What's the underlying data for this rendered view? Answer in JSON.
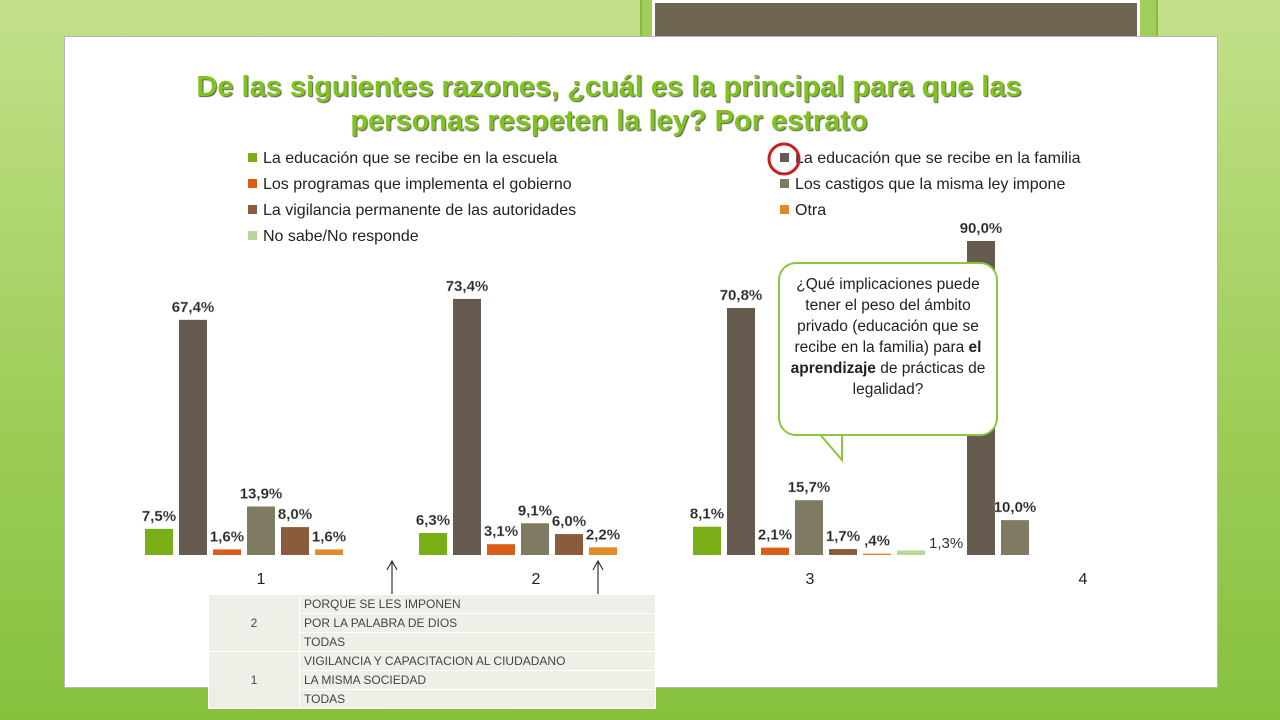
{
  "title_line1": "De las siguientes razones, ¿cuál es la principal para que las",
  "title_line2": "personas respeten la ley? Por estrato",
  "colors": {
    "escuela": "#7aae17",
    "familia": "#675a4f",
    "gobierno": "#d85e1a",
    "castigos": "#7f7a62",
    "vigilancia": "#8a5b3c",
    "otra": "#e08a2c",
    "nsnr": "#b6d69a",
    "title": "#7fc31c",
    "circle": "#c8201e"
  },
  "chart_data": {
    "type": "bar",
    "categories": [
      "1",
      "2",
      "3",
      "4"
    ],
    "series": [
      {
        "name": "La educación que se recibe en la escuela",
        "color_key": "escuela",
        "values": [
          7.5,
          6.3,
          8.1,
          null
        ],
        "labels": [
          "7,5%",
          "6,3%",
          "8,1%",
          ""
        ]
      },
      {
        "name": "La educación que se recibe en la familia",
        "color_key": "familia",
        "values": [
          67.4,
          73.4,
          70.8,
          90.0
        ],
        "labels": [
          "67,4%",
          "73,4%",
          "70,8%",
          "90,0%"
        ]
      },
      {
        "name": "Los programas que implementa el gobierno",
        "color_key": "gobierno",
        "values": [
          1.6,
          3.1,
          2.1,
          null
        ],
        "labels": [
          "1,6%",
          "3,1%",
          "2,1%",
          ""
        ]
      },
      {
        "name": "Los castigos que la misma ley impone",
        "color_key": "castigos",
        "values": [
          13.9,
          9.1,
          15.7,
          10.0
        ],
        "labels": [
          "13,9%",
          "9,1%",
          "15,7%",
          "10,0%"
        ]
      },
      {
        "name": "La vigilancia permanente de las autoridades",
        "color_key": "vigilancia",
        "values": [
          8.0,
          6.0,
          1.7,
          null
        ],
        "labels": [
          "8,0%",
          "6,0%",
          "1,7%",
          ""
        ]
      },
      {
        "name": "Otra",
        "color_key": "otra",
        "values": [
          1.6,
          2.2,
          0.4,
          null
        ],
        "labels": [
          "1,6%",
          "2,2%",
          ",4%",
          ""
        ]
      },
      {
        "name": "No sabe/No responde",
        "color_key": "nsnr",
        "values": [
          null,
          null,
          1.3,
          null
        ],
        "labels": [
          "",
          "",
          "1,3%",
          ""
        ]
      }
    ],
    "ylim": [
      0,
      90
    ],
    "grid": false,
    "legend_placement": "top",
    "annotation_circle_on": "La educación que se recibe en la familia"
  },
  "bubble": {
    "text_before": "¿Qué implicaciones puede tener el peso del ámbito privado (educación que se recibe en la familia) para ",
    "text_bold": "el aprendizaje",
    "text_after": " de prácticas de legalidad?"
  },
  "table": {
    "groups": [
      {
        "estrato": "2",
        "rows": [
          "PORQUE SE LES IMPONEN",
          "POR LA PALABRA DE DIOS",
          "TODAS"
        ]
      },
      {
        "estrato": "1",
        "rows": [
          "VIGILANCIA Y CAPACITACION AL CIUDADANO",
          "LA MISMA SOCIEDAD",
          "TODAS"
        ]
      }
    ]
  }
}
